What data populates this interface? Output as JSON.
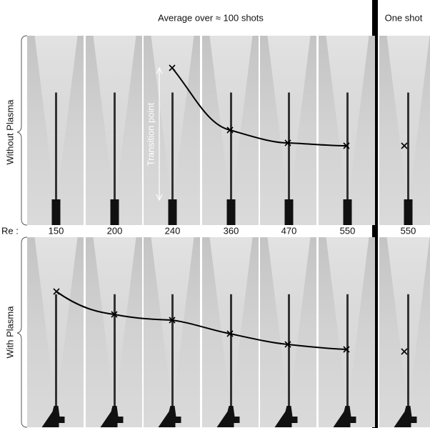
{
  "header": {
    "title": "Average over ≈ 100 shots",
    "one_shot": "One shot"
  },
  "rows": [
    {
      "label": "Without Plasma"
    },
    {
      "label": "With Plasma"
    }
  ],
  "re_label": "Re :",
  "re_values": [
    150,
    200,
    240,
    360,
    470,
    550,
    550
  ],
  "annotation": "Transition point"
}
